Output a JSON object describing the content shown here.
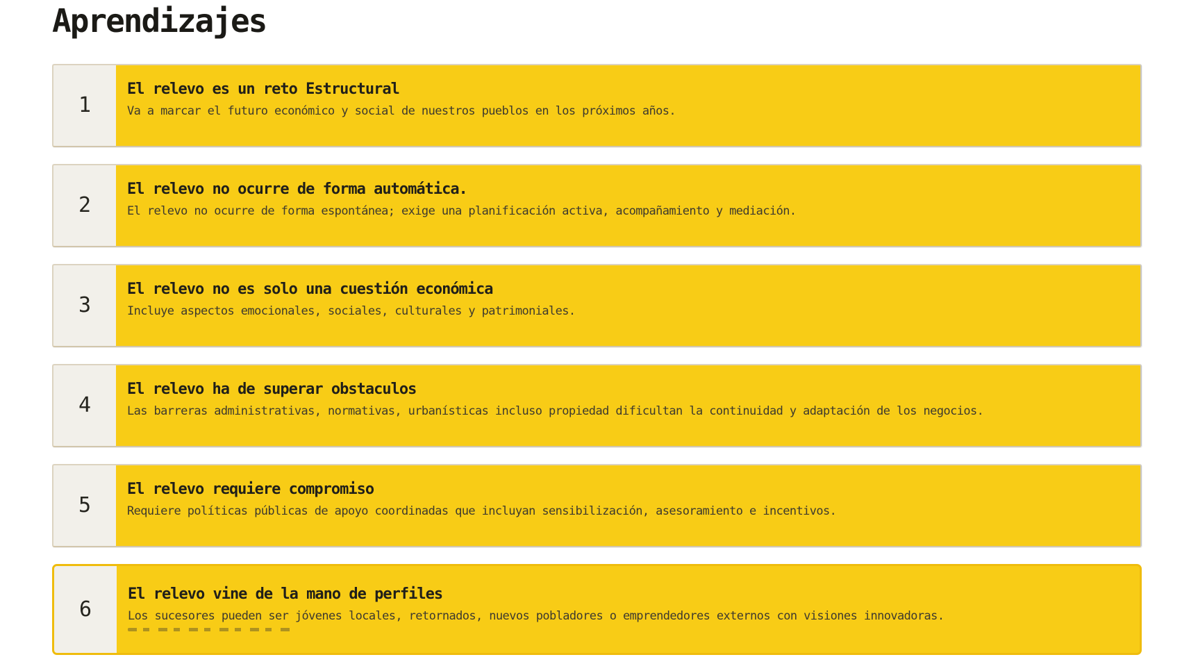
{
  "page": {
    "title": "Aprendizajes"
  },
  "theme": {
    "card_bg": "#F8CC16",
    "number_bg": "#F2F0EA",
    "card_border": "#DCD3C0",
    "selected_border": "#EFBC0D",
    "heading_color": "#1B1A16",
    "item_title_color": "#201F1A",
    "item_description_color": "#3E3A2E"
  },
  "items": [
    {
      "number": "1",
      "title": "El relevo es un reto Estructural",
      "description": "Va a marcar el futuro económico y social de nuestros pueblos en los próximos años.",
      "selected": false,
      "clipped": false
    },
    {
      "number": "2",
      "title": "El relevo no ocurre de forma automática.",
      "description": "El relevo no ocurre de forma espontánea; exige una planificación activa, acompañamiento y mediación.",
      "selected": false,
      "clipped": false
    },
    {
      "number": "3",
      "title": "El relevo no es solo una cuestión económica",
      "description": "Incluye aspectos emocionales, sociales, culturales y patrimoniales.",
      "selected": false,
      "clipped": false
    },
    {
      "number": "4",
      "title": "El relevo ha de superar obstaculos",
      "description": "Las barreras administrativas, normativas, urbanísticas incluso propiedad dificultan la continuidad y adaptación de los negocios.",
      "selected": false,
      "clipped": false
    },
    {
      "number": "5",
      "title": "El relevo requiere compromiso",
      "description": "Requiere políticas públicas de apoyo coordinadas que incluyan sensibilización, asesoramiento e incentivos.",
      "selected": false,
      "clipped": false
    },
    {
      "number": "6",
      "title": "El relevo vine de la mano de perfiles",
      "description": "Los sucesores pueden ser jóvenes locales, retornados, nuevos pobladores o emprendedores externos con visiones innovadoras.",
      "selected": true,
      "clipped": true
    }
  ]
}
